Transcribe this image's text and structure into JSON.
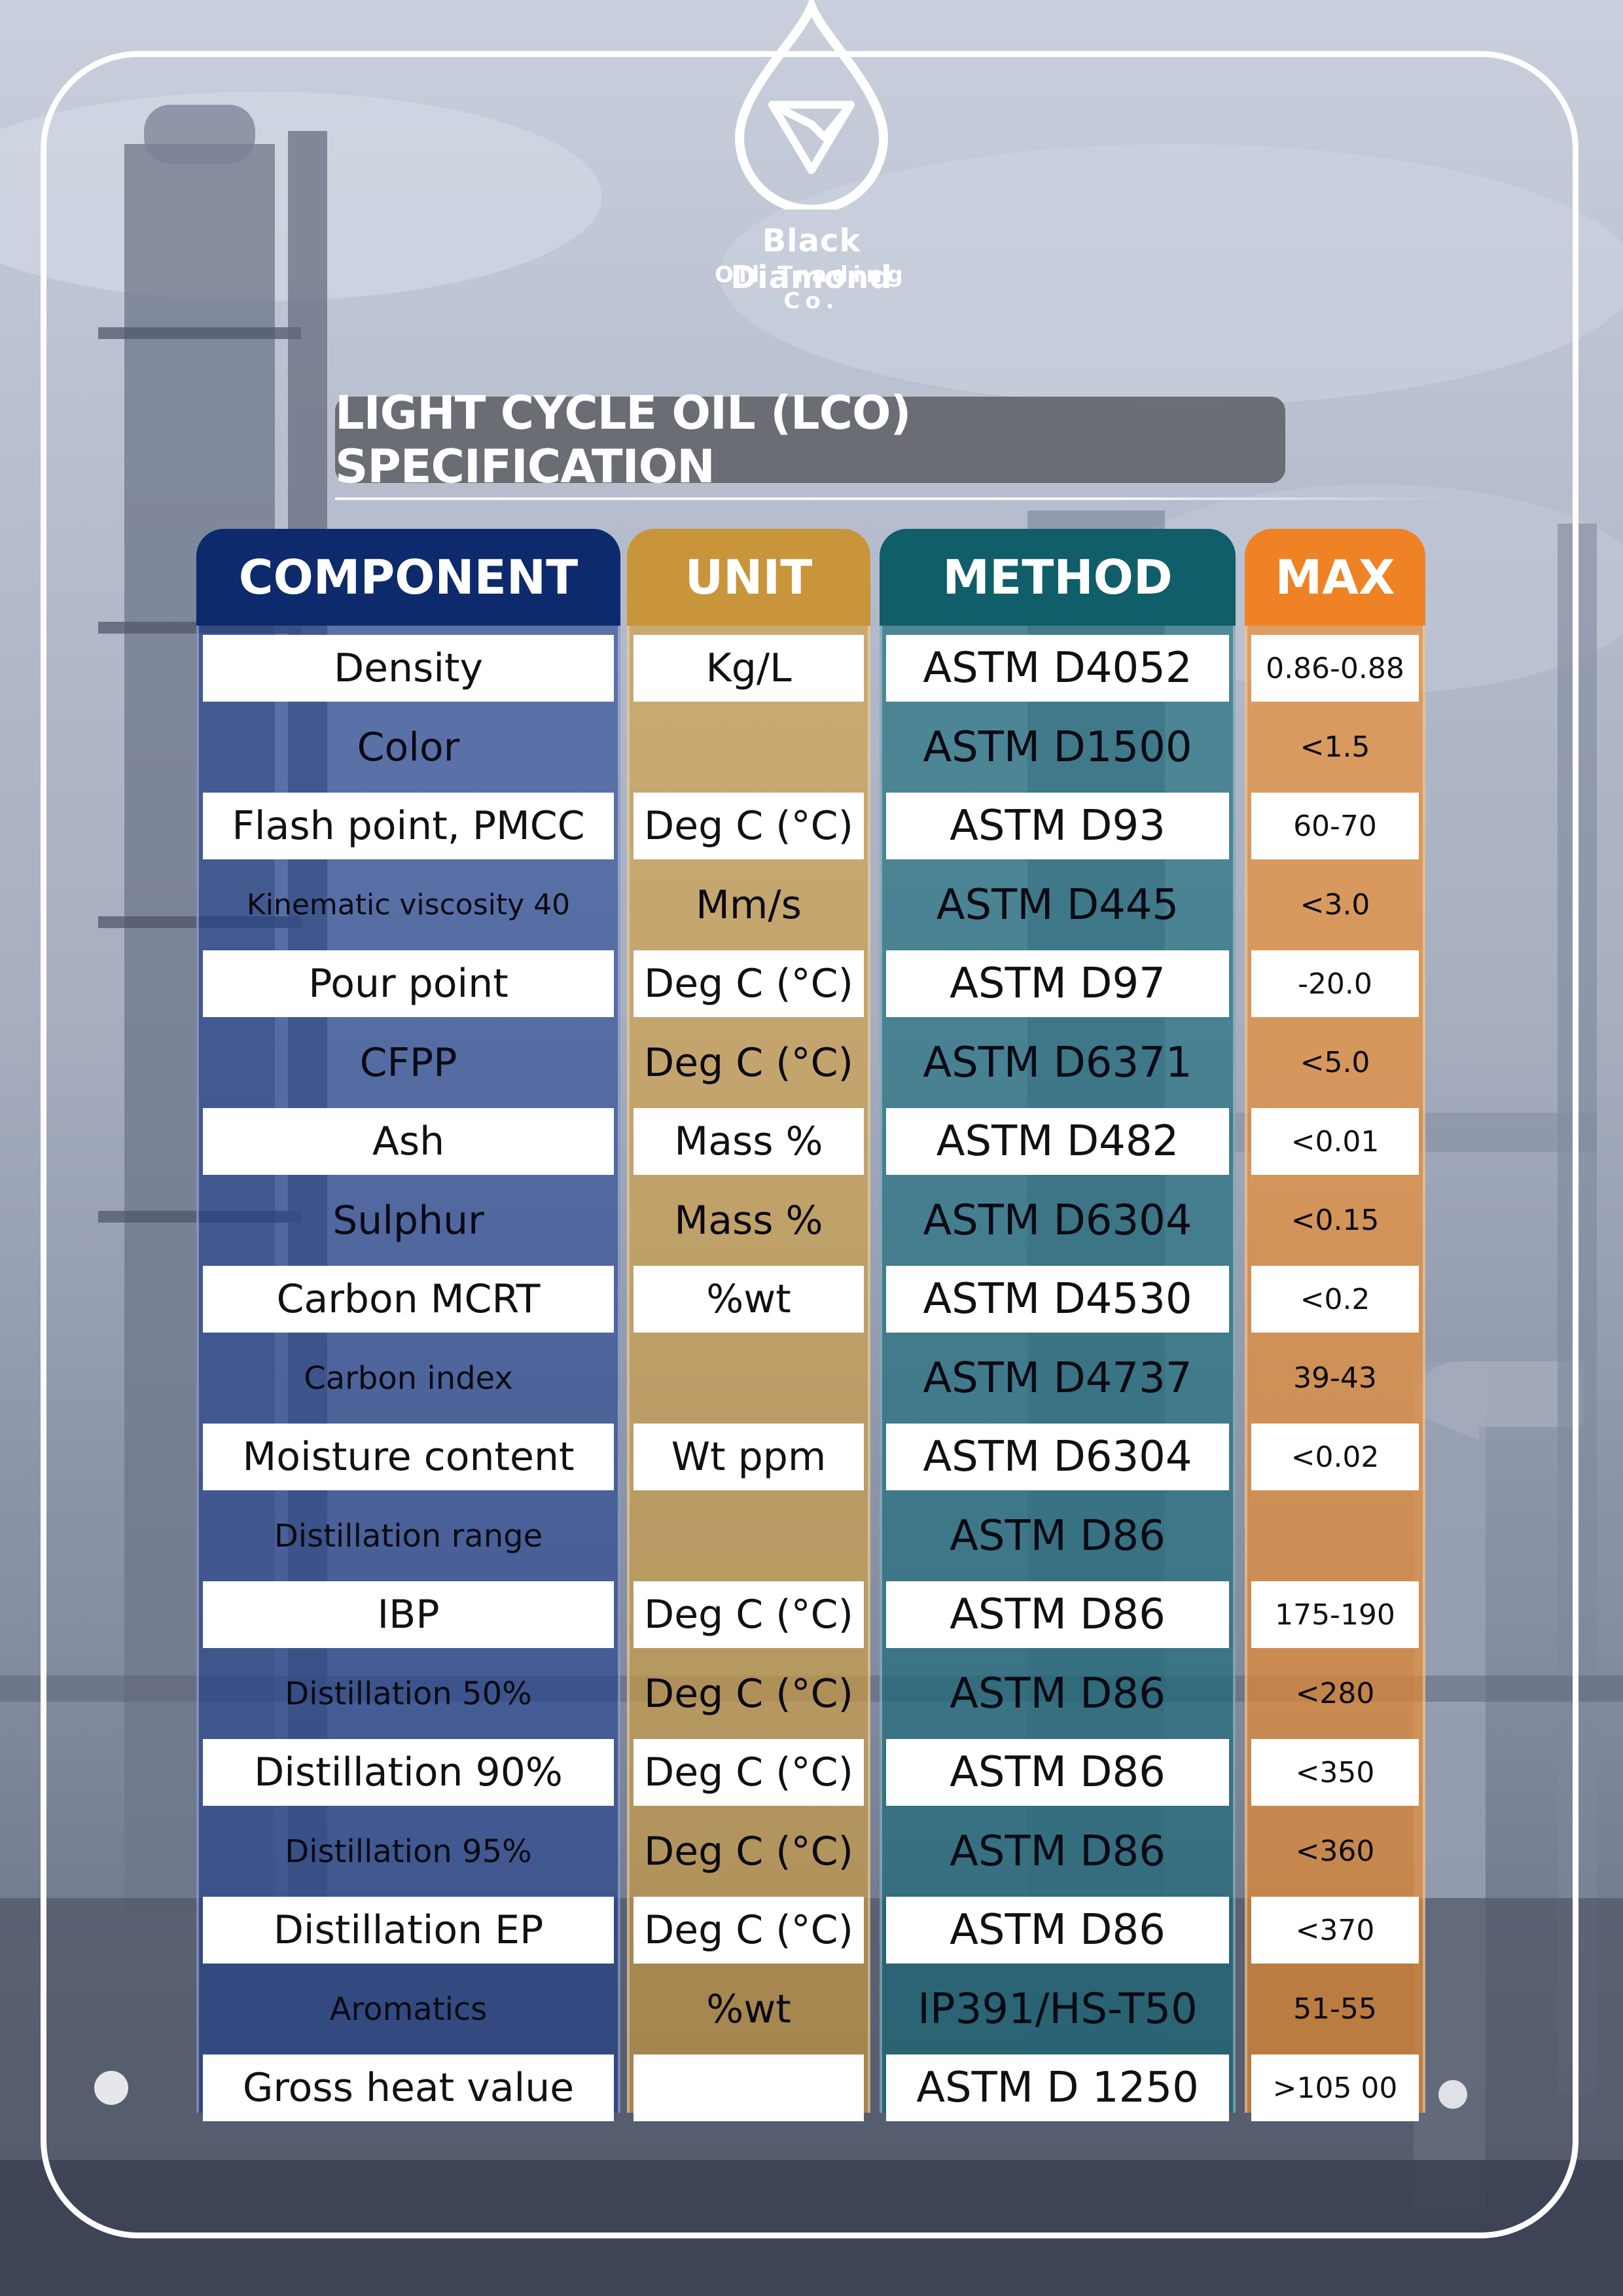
{
  "brand": {
    "name": "Black Diamond",
    "subtitle": "Oil Trading Co."
  },
  "title": "LIGHT CYCLE OIL (LCO) SPECIFICATION",
  "headers": {
    "component": "COMPONENT",
    "unit": "UNIT",
    "method": "METHOD",
    "max": "MAX"
  },
  "colors": {
    "component": "#0d2a6d",
    "unit": "#c9953b",
    "method": "#0f5e69",
    "max": "#ef8224"
  },
  "rows": [
    {
      "component": "Density",
      "unit": "Kg/L",
      "method": "ASTM D4052",
      "max": "0.86-0.88"
    },
    {
      "component": "Color",
      "unit": "",
      "method": "ASTM D1500",
      "max": "<1.5"
    },
    {
      "component": "Flash point, PMCC",
      "unit": "Deg C (°C)",
      "method": "ASTM D93",
      "max": "60-70"
    },
    {
      "component": "Kinematic viscosity 40",
      "unit": "Mm/s",
      "method": "ASTM D445",
      "max": "<3.0"
    },
    {
      "component": "Pour point",
      "unit": "Deg C (°C)",
      "method": "ASTM D97",
      "max": "-20.0"
    },
    {
      "component": "CFPP",
      "unit": "Deg C (°C)",
      "method": "ASTM D6371",
      "max": "<5.0"
    },
    {
      "component": "Ash",
      "unit": "Mass %",
      "method": "ASTM D482",
      "max": "<0.01"
    },
    {
      "component": "Sulphur",
      "unit": "Mass %",
      "method": "ASTM D6304",
      "max": "<0.15"
    },
    {
      "component": "Carbon MCRT",
      "unit": "%wt",
      "method": "ASTM D4530",
      "max": "<0.2"
    },
    {
      "component": "Carbon index",
      "unit": "",
      "method": "ASTM D4737",
      "max": "39-43"
    },
    {
      "component": "Moisture content",
      "unit": "Wt ppm",
      "method": "ASTM D6304",
      "max": "<0.02"
    },
    {
      "component": "Distillation range",
      "unit": "",
      "method": "ASTM D86",
      "max": ""
    },
    {
      "component": "IBP",
      "unit": "Deg C (°C)",
      "method": "ASTM D86",
      "max": "175-190"
    },
    {
      "component": "Distillation 50%",
      "unit": "Deg C (°C)",
      "method": "ASTM D86",
      "max": "<280"
    },
    {
      "component": "Distillation 90%",
      "unit": "Deg C (°C)",
      "method": "ASTM D86",
      "max": "<350"
    },
    {
      "component": "Distillation 95%",
      "unit": "Deg C (°C)",
      "method": "ASTM D86",
      "max": "<360"
    },
    {
      "component": "Distillation EP",
      "unit": "Deg C (°C)",
      "method": "ASTM D86",
      "max": "<370"
    },
    {
      "component": "Aromatics",
      "unit": "%wt",
      "method": "IP391/HS-T50",
      "max": "51-55"
    },
    {
      "component": "Gross heat value",
      "unit": "",
      "method": "ASTM D 1250",
      "max": ">105 00"
    }
  ]
}
